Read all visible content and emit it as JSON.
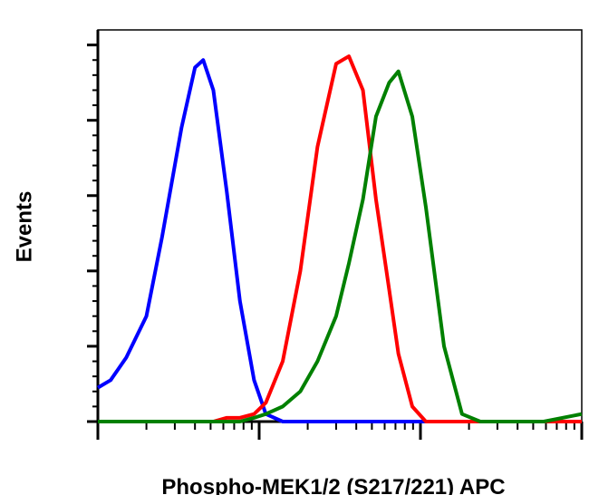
{
  "chart_data": {
    "type": "line",
    "y_label": "Events",
    "x_label": "Phospho-MEK1/2 (S217/221) APC",
    "x_log": true,
    "x": [
      1,
      1.2,
      1.5,
      2,
      2.5,
      3.3,
      4,
      4.5,
      5.2,
      6.3,
      7.6,
      9.3,
      11,
      14,
      18,
      23,
      30,
      36,
      44,
      53,
      64,
      73,
      89,
      108,
      140,
      181,
      235,
      346,
      581,
      1000
    ],
    "series": [
      {
        "color": "#0000ff",
        "values": [
          9,
          11,
          17,
          28,
          49,
          78,
          94,
          96,
          88,
          61,
          32,
          11,
          2,
          0,
          0,
          0,
          0,
          0,
          0,
          0,
          0,
          0,
          0,
          0,
          0,
          0,
          0,
          0,
          0,
          0
        ]
      },
      {
        "color": "#ff0000",
        "values": [
          0,
          0,
          0,
          0,
          0,
          0,
          0,
          0,
          0,
          1,
          1,
          2,
          5,
          16,
          40,
          73,
          95,
          97,
          88,
          59,
          35,
          18,
          4,
          0,
          0,
          0,
          0,
          0,
          0,
          0
        ]
      },
      {
        "color": "#008000",
        "values": [
          0,
          0,
          0,
          0,
          0,
          0,
          0,
          0,
          0,
          0,
          0,
          1,
          2,
          4,
          8,
          16,
          28,
          42,
          59,
          81,
          90,
          93,
          81,
          57,
          20,
          2,
          0,
          0,
          0,
          2
        ]
      }
    ],
    "xlim": [
      1,
      1000
    ],
    "xticks": [
      1,
      10,
      100,
      1000
    ],
    "ylim": [
      0,
      104
    ],
    "yticks": [
      0,
      20,
      40,
      60,
      80,
      100
    ]
  }
}
